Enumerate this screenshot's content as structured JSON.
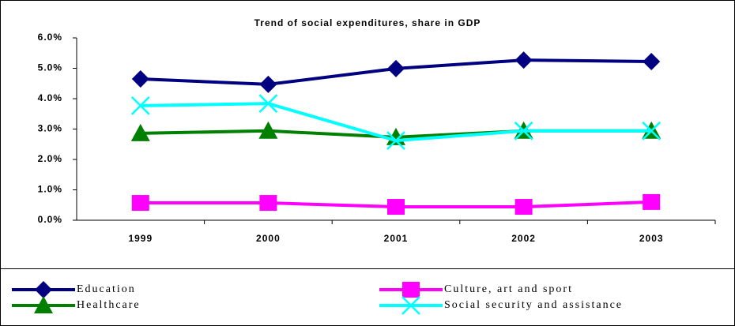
{
  "chart_data": {
    "type": "line",
    "title": "Trend of social expenditures, share in GDP",
    "categories": [
      "1999",
      "2000",
      "2001",
      "2002",
      "2003"
    ],
    "series": [
      {
        "name": "Education",
        "color": "#000080",
        "marker": "diamond",
        "values": [
          4.65,
          4.47,
          4.99,
          5.27,
          5.22
        ]
      },
      {
        "name": "Culture, art and sport",
        "color": "#ff00ff",
        "marker": "square",
        "values": [
          0.57,
          0.57,
          0.44,
          0.44,
          0.6
        ]
      },
      {
        "name": "Healthcare",
        "color": "#008000",
        "marker": "triangle",
        "values": [
          2.86,
          2.94,
          2.73,
          2.94,
          2.94
        ]
      },
      {
        "name": "Social security and assistance",
        "color": "#00ffff",
        "marker": "x",
        "values": [
          3.77,
          3.84,
          2.62,
          2.94,
          2.94
        ]
      }
    ],
    "ylim": [
      0,
      6
    ],
    "yticks": [
      {
        "value": 0,
        "label": "0.0%"
      },
      {
        "value": 1,
        "label": "1.0%"
      },
      {
        "value": 2,
        "label": "2.0%"
      },
      {
        "value": 3,
        "label": "3.0%"
      },
      {
        "value": 4,
        "label": "4.0%"
      },
      {
        "value": 5,
        "label": "5.0%"
      },
      {
        "value": 6,
        "label": "6.0%"
      }
    ],
    "grid": false
  }
}
